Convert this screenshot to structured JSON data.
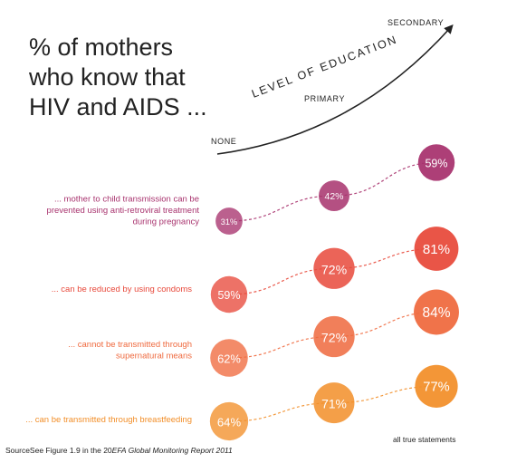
{
  "title_lines": [
    "% of mothers",
    "who know that",
    "HIV and AIDS ..."
  ],
  "education_axis": {
    "label": "LEVEL OF EDUCATION",
    "levels": [
      "NONE",
      "PRIMARY",
      "SECONDARY"
    ]
  },
  "footnote": "all true statements",
  "source": {
    "prefix": "SourceSee Figure 1.9 in the 20",
    "italic": "EFA Global Monitoring Report 2011"
  },
  "chart_data": {
    "type": "scatter",
    "title": "% of mothers who know that HIV and AIDS ...",
    "categories": [
      "NONE",
      "PRIMARY",
      "SECONDARY"
    ],
    "unit": "%",
    "series": [
      {
        "name": "... mother to child transmission can be prevented using anti-retroviral treatment during pregnancy",
        "label_lines": [
          "... mother to child transmission can be",
          "prevented using anti-retroviral treatment",
          "during pregnancy"
        ],
        "color": "#a8336e",
        "values": [
          31,
          42,
          59
        ]
      },
      {
        "name": "... can be reduced by using condoms",
        "label_lines": [
          "... can be reduced by using condoms"
        ],
        "color": "#e84a3c",
        "values": [
          59,
          72,
          81
        ]
      },
      {
        "name": "... cannot be transmitted through supernatural means",
        "label_lines": [
          "... cannot be transmitted through",
          "supernatural means"
        ],
        "color": "#ef6a3f",
        "values": [
          62,
          72,
          84
        ]
      },
      {
        "name": "... can be transmitted through breastfeeding",
        "label_lines": [
          "... can be transmitted through breastfeeding"
        ],
        "color": "#f28f2a",
        "values": [
          64,
          71,
          77
        ]
      }
    ]
  }
}
